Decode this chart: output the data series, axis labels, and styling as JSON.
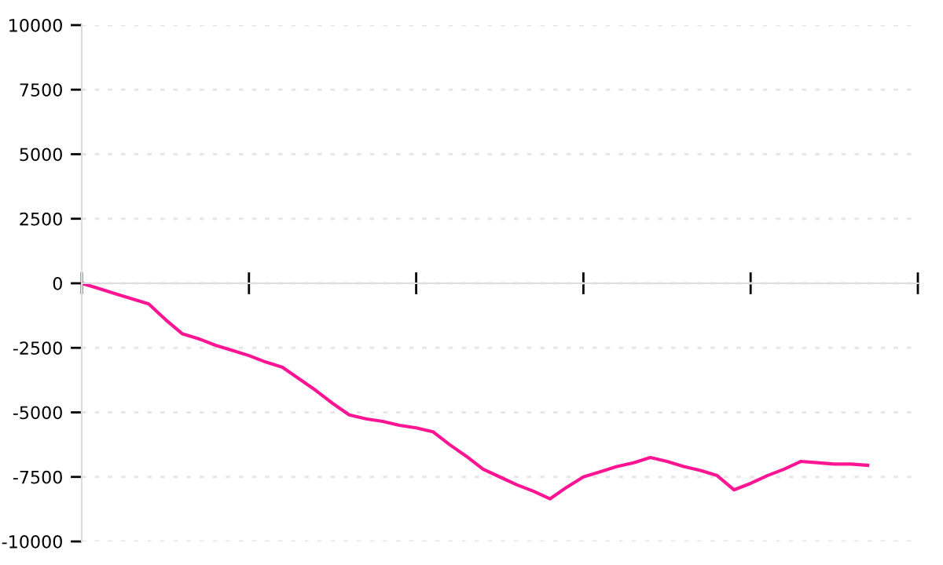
{
  "chart_data": {
    "type": "line",
    "categories": [
      null,
      null,
      null,
      null,
      null,
      null,
      null,
      null,
      null,
      null,
      null,
      null,
      null,
      null,
      null,
      null,
      null,
      null,
      null,
      null,
      null,
      null,
      null,
      null,
      null,
      null,
      null,
      null,
      null,
      null,
      null,
      null,
      null,
      null,
      null,
      null,
      null,
      null,
      null,
      null,
      null,
      null,
      null,
      null,
      null,
      null,
      null,
      null,
      null,
      null,
      null
    ],
    "series": [
      {
        "color": "#ff1493",
        "values": [
          0,
          -200,
          -400,
          -600,
          -800,
          -1400,
          -1950,
          -2150,
          -2400,
          -2600,
          -2800,
          -3050,
          -3250,
          -3700,
          -4150,
          -4650,
          -5100,
          -5250,
          -5350,
          -5500,
          -5600,
          -5750,
          -6250,
          -6700,
          -7200,
          -7500,
          -7800,
          -8050,
          -8350,
          -7900,
          -7500,
          -7300,
          -7100,
          -6950,
          -6750,
          -6900,
          -7100,
          -7250,
          -7450,
          -8000,
          -7750,
          -7450,
          -7200,
          -6900,
          -6950,
          -7000,
          -7000,
          -7050,
          null,
          null,
          null
        ]
      }
    ],
    "ylim": [
      -10000,
      10000
    ],
    "yticks": [
      -10000,
      -7500,
      -5000,
      -2500,
      0,
      2500,
      5000,
      7500,
      10000
    ],
    "grid": "y",
    "tick_labels": "y",
    "legend": false,
    "marker": "none",
    "line_style": "solid"
  }
}
